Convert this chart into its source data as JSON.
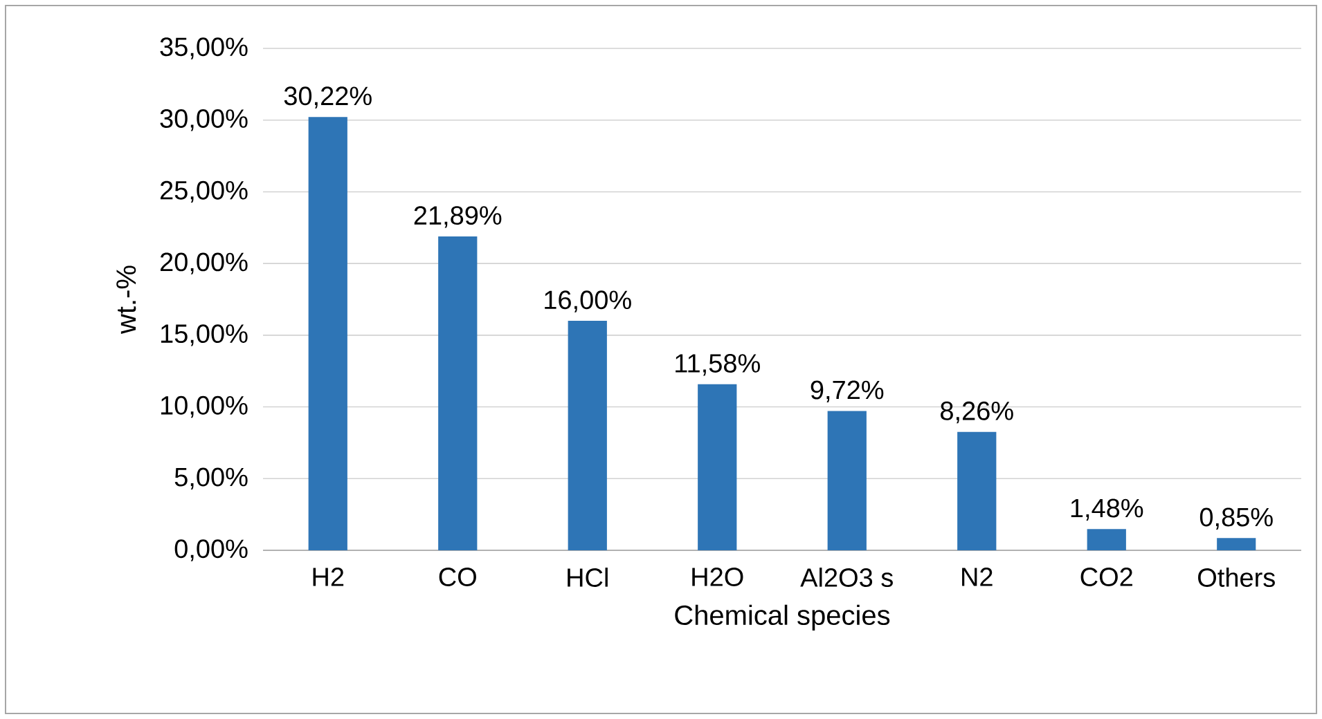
{
  "chart_data": {
    "type": "bar",
    "xlabel": "Chemical species",
    "ylabel": "wt.-%",
    "categories": [
      "H2",
      "CO",
      "HCl",
      "H2O",
      "Al2O3 s",
      "N2",
      "CO2",
      "Others"
    ],
    "values": [
      30.22,
      21.89,
      16.0,
      11.58,
      9.72,
      8.26,
      1.48,
      0.85
    ],
    "value_labels": [
      "30,22%",
      "21,89%",
      "16,00%",
      "11,58%",
      "9,72%",
      "8,26%",
      "1,48%",
      "0,85%"
    ],
    "color": "#2e75b6",
    "ylim": [
      0,
      35
    ],
    "yticks": [
      {
        "value": 0,
        "label": "0,00%"
      },
      {
        "value": 5,
        "label": "5,00%"
      },
      {
        "value": 10,
        "label": "10,00%"
      },
      {
        "value": 15,
        "label": "15,00%"
      },
      {
        "value": 20,
        "label": "20,00%"
      },
      {
        "value": 25,
        "label": "25,00%"
      },
      {
        "value": 30,
        "label": "30,00%"
      },
      {
        "value": 35,
        "label": "35,00%"
      }
    ],
    "grid": "y"
  }
}
